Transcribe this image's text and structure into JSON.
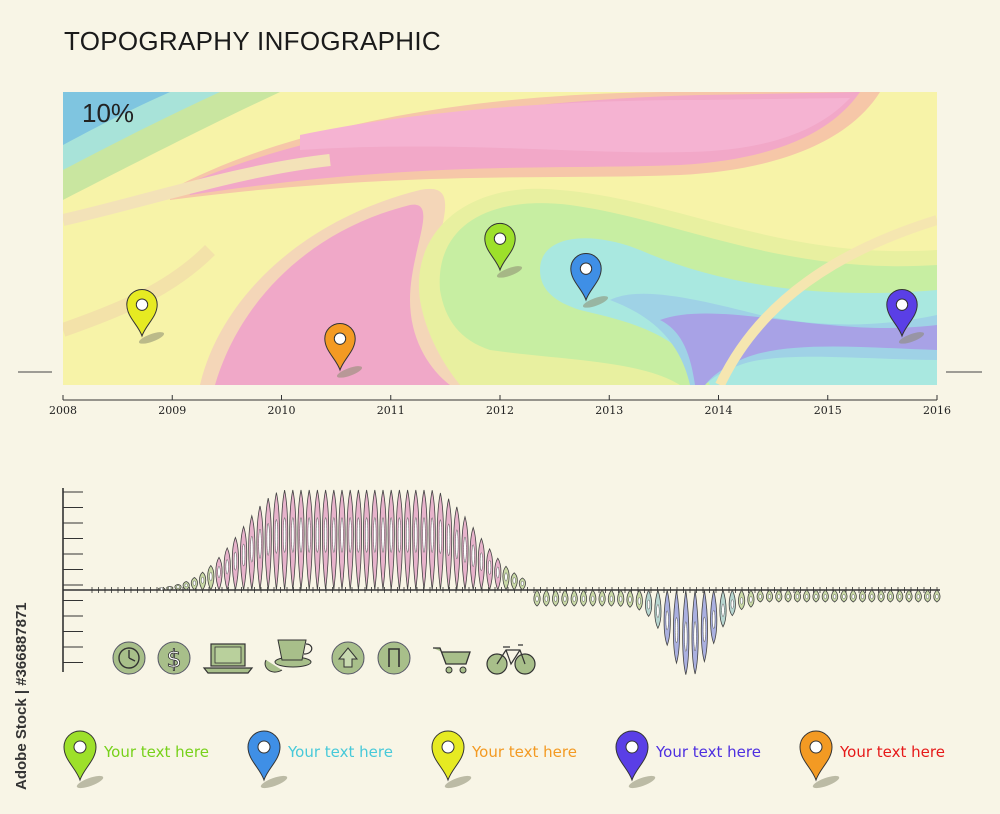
{
  "title": "TOPOGRAPHY INFOGRAPHIC",
  "map": {
    "percent_label": "10%",
    "years": [
      "2008",
      "2009",
      "2010",
      "2011",
      "2012",
      "2013",
      "2014",
      "2015",
      "2016"
    ],
    "pin_colors": [
      "#e6ea22",
      "#f39a23",
      "#9de02a",
      "#3f8fe6",
      "#5a3fe6"
    ]
  },
  "wave": {
    "icons": [
      "clock-icon",
      "dollar-icon",
      "laptop-icon",
      "coffee-icon",
      "up-arrow-icon",
      "sign-icon",
      "cart-icon",
      "bicycle-icon"
    ]
  },
  "legend": [
    {
      "label": "Your text here",
      "pin_color": "#9de02a",
      "text_color": "#77d11a"
    },
    {
      "label": "Your text here",
      "pin_color": "#3f8fe6",
      "text_color": "#47c9d9"
    },
    {
      "label": "Your text here",
      "pin_color": "#e6ea22",
      "text_color": "#f39a23"
    },
    {
      "label": "Your text here",
      "pin_color": "#5a3fe6",
      "text_color": "#4d2fe0"
    },
    {
      "label": "Your text here",
      "pin_color": "#f39a23",
      "text_color": "#e61919"
    }
  ],
  "watermark": "Adobe Stock | #366887871"
}
